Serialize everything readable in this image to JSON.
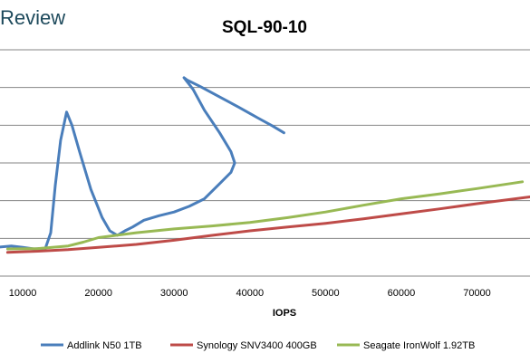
{
  "brand": {
    "text": "Review"
  },
  "chart_data": {
    "type": "line",
    "title": "SQL-90-10",
    "xlabel": "IOPS",
    "ylabel": "",
    "xlim": [
      7000,
      77000
    ],
    "x_ticks": [
      "10000",
      "20000",
      "30000",
      "40000",
      "50000",
      "60000",
      "70000"
    ],
    "grid": {
      "horizontal": true,
      "vertical": false
    },
    "legend_position": "bottom",
    "series": [
      {
        "name": "Addlink N50 1TB",
        "color": "#4a7ebb",
        "points": [
          [
            7000,
            0.77
          ],
          [
            8500,
            0.8
          ],
          [
            10000,
            0.76
          ],
          [
            11500,
            0.72
          ],
          [
            13000,
            0.74
          ],
          [
            13700,
            1.15
          ],
          [
            14300,
            2.4
          ],
          [
            15000,
            3.6
          ],
          [
            15800,
            4.35
          ],
          [
            16500,
            4.0
          ],
          [
            17500,
            3.3
          ],
          [
            19000,
            2.3
          ],
          [
            20500,
            1.55
          ],
          [
            21500,
            1.2
          ],
          [
            22500,
            1.08
          ],
          [
            23500,
            1.2
          ],
          [
            24500,
            1.3
          ],
          [
            26000,
            1.48
          ],
          [
            28000,
            1.6
          ],
          [
            30000,
            1.7
          ],
          [
            32000,
            1.85
          ],
          [
            34000,
            2.05
          ],
          [
            36000,
            2.45
          ],
          [
            37500,
            2.75
          ],
          [
            38000,
            3.0
          ],
          [
            37500,
            3.3
          ],
          [
            36000,
            3.8
          ],
          [
            34000,
            4.4
          ],
          [
            32500,
            4.95
          ],
          [
            31300,
            5.26
          ],
          [
            31700,
            5.2
          ],
          [
            33500,
            5.02
          ],
          [
            36000,
            4.75
          ],
          [
            38500,
            4.48
          ],
          [
            41000,
            4.2
          ],
          [
            43000,
            3.98
          ],
          [
            44500,
            3.8
          ]
        ]
      },
      {
        "name": "Synology SNV3400 400GB",
        "color": "#be4b48",
        "points": [
          [
            8000,
            0.63
          ],
          [
            12000,
            0.66
          ],
          [
            16000,
            0.7
          ],
          [
            20000,
            0.76
          ],
          [
            25000,
            0.84
          ],
          [
            30000,
            0.95
          ],
          [
            35000,
            1.08
          ],
          [
            40000,
            1.2
          ],
          [
            45000,
            1.3
          ],
          [
            50000,
            1.4
          ],
          [
            55000,
            1.52
          ],
          [
            60000,
            1.65
          ],
          [
            65000,
            1.78
          ],
          [
            70000,
            1.92
          ],
          [
            77000,
            2.1
          ]
        ]
      },
      {
        "name": "Seagate IronWolf 1.92TB",
        "color": "#98b954",
        "points": [
          [
            8000,
            0.72
          ],
          [
            12000,
            0.73
          ],
          [
            16000,
            0.8
          ],
          [
            18000,
            0.9
          ],
          [
            20000,
            1.02
          ],
          [
            25000,
            1.15
          ],
          [
            30000,
            1.25
          ],
          [
            35000,
            1.33
          ],
          [
            40000,
            1.42
          ],
          [
            45000,
            1.55
          ],
          [
            50000,
            1.7
          ],
          [
            55000,
            1.88
          ],
          [
            60000,
            2.05
          ],
          [
            65000,
            2.18
          ],
          [
            70000,
            2.32
          ],
          [
            76000,
            2.5
          ]
        ]
      }
    ]
  }
}
